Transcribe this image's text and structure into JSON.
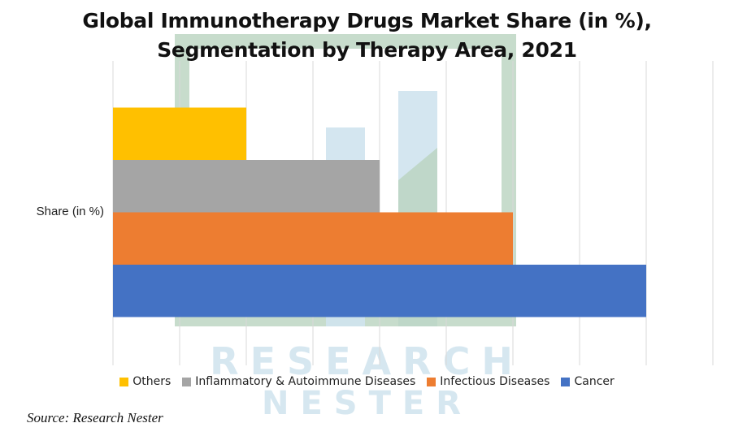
{
  "title": "Global Immunotherapy Drugs Market Share (in %), Segmentation by Therapy Area, 2021",
  "source": "Source: Research Nester",
  "watermark": {
    "line1": "RESEARCH",
    "line2": "NESTER"
  },
  "chart_data": {
    "type": "bar",
    "orientation": "horizontal",
    "categories": [
      "Share (in %)"
    ],
    "series": [
      {
        "name": "Cancer",
        "color": "#4472c4",
        "values": [
          40
        ]
      },
      {
        "name": "Infectious Diseases",
        "color": "#ed7d31",
        "values": [
          30
        ]
      },
      {
        "name": "Inflammatory & Autoimmune Diseases",
        "color": "#a5a5a5",
        "values": [
          20
        ]
      },
      {
        "name": "Others",
        "color": "#ffc000",
        "values": [
          10
        ]
      }
    ],
    "legend_order": [
      "Others",
      "Inflammatory & Autoimmune Diseases",
      "Infectious Diseases",
      "Cancer"
    ],
    "xlim": [
      0,
      45
    ],
    "gridlines": "vertical",
    "legend_position": "bottom",
    "title": "Global Immunotherapy Drugs Market Share (in %), Segmentation by Therapy Area, 2021",
    "xlabel": "",
    "ylabel": ""
  }
}
